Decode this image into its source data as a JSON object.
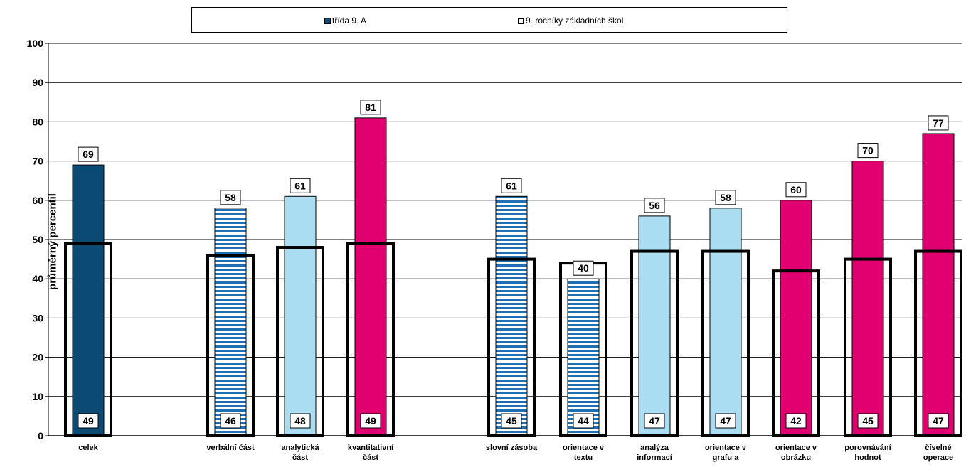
{
  "legend": {
    "class_label": "třída  9. A",
    "national_label": "9. ročníky základních škol"
  },
  "colors": {
    "dark_blue": "#0b4a73",
    "light_blue": "#aadcf2",
    "striped_blue": "#1f6fb5",
    "magenta": "#e0006f",
    "national_outline": "#000000"
  },
  "chart_data": {
    "type": "bar",
    "ylabel": "průměrný percentil",
    "xlabel": "",
    "ylim": [
      0,
      100
    ],
    "yticks": [
      0,
      10,
      20,
      30,
      40,
      50,
      60,
      70,
      80,
      90,
      100
    ],
    "grid": true,
    "legend_position": "top",
    "categories": [
      {
        "label": [
          "celek"
        ],
        "class": 69,
        "national": 49,
        "style": "dark_blue"
      },
      {
        "label": [
          "verbální část"
        ],
        "class": 58,
        "national": 46,
        "style": "striped_blue"
      },
      {
        "label": [
          "analytická",
          "část"
        ],
        "class": 61,
        "national": 48,
        "style": "light_blue"
      },
      {
        "label": [
          "kvantitativní",
          "část"
        ],
        "class": 81,
        "national": 49,
        "style": "magenta"
      },
      {
        "label": [
          "slovní zásoba"
        ],
        "class": 61,
        "national": 45,
        "style": "striped_blue"
      },
      {
        "label": [
          "orientace v",
          "textu"
        ],
        "class": 40,
        "national": 44,
        "style": "striped_blue"
      },
      {
        "label": [
          "analýza",
          "informací"
        ],
        "class": 56,
        "national": 47,
        "style": "light_blue"
      },
      {
        "label": [
          "orientace v",
          "grafu a"
        ],
        "class": 58,
        "national": 47,
        "style": "light_blue"
      },
      {
        "label": [
          "orientace v",
          "obrázku"
        ],
        "class": 60,
        "national": 42,
        "style": "magenta"
      },
      {
        "label": [
          "porovnávání",
          "hodnot"
        ],
        "class": 70,
        "national": 45,
        "style": "magenta"
      },
      {
        "label": [
          "číselné",
          "operace"
        ],
        "class": 77,
        "national": 47,
        "style": "magenta"
      }
    ],
    "series": [
      {
        "name": "třída  9. A",
        "values": [
          69,
          58,
          61,
          81,
          61,
          40,
          56,
          58,
          60,
          70,
          77
        ]
      },
      {
        "name": "9. ročníky základních škol",
        "values": [
          49,
          46,
          48,
          49,
          45,
          44,
          47,
          47,
          42,
          45,
          47
        ]
      }
    ]
  }
}
